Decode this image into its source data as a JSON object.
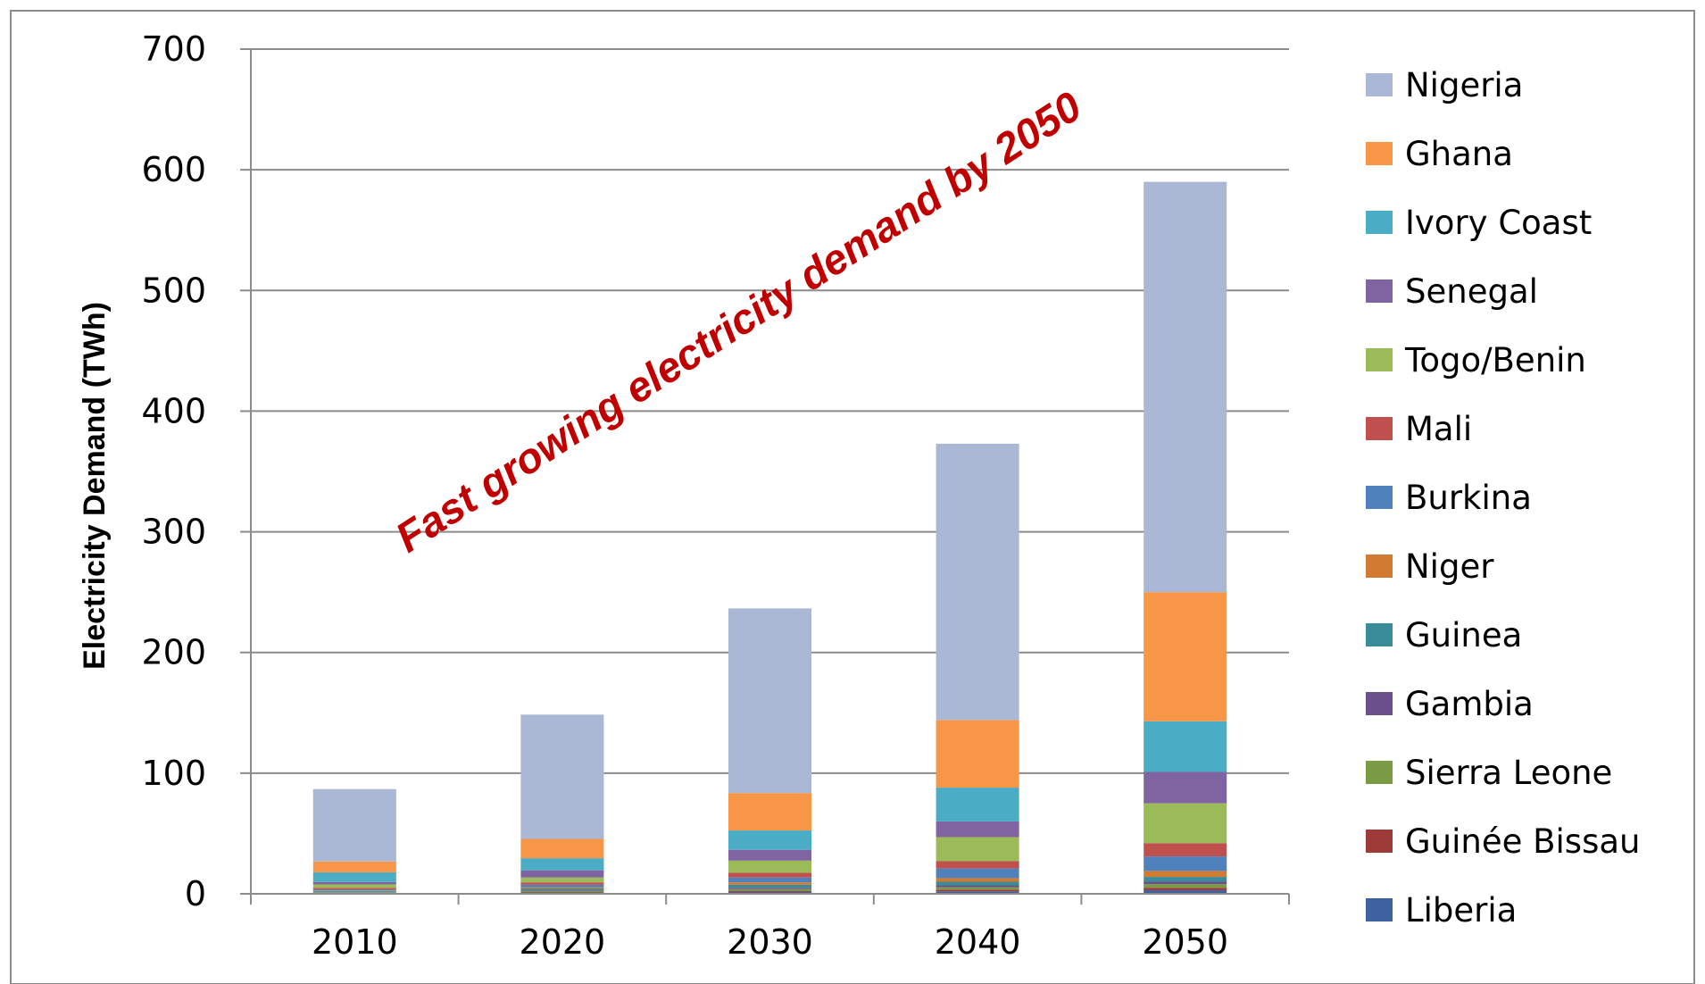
{
  "chart_data": {
    "type": "bar",
    "stacked": true,
    "categories": [
      "2010",
      "2020",
      "2030",
      "2040",
      "2050"
    ],
    "ylabel": "Electricity Demand (TWh)",
    "ylim": [
      0,
      700
    ],
    "yticks": [
      "0",
      "100",
      "200",
      "300",
      "400",
      "500",
      "600",
      "700"
    ],
    "grid": true,
    "legend_position": "right",
    "annotation": {
      "text": "Fast growing electricity demand by 2050",
      "color": "#c00000"
    },
    "series": [
      {
        "name": "Liberia",
        "color": "#3e62a0",
        "values": [
          0.5,
          1,
          1.5,
          2,
          3
        ]
      },
      {
        "name": "Guinée Bissau",
        "color": "#9c3b38",
        "values": [
          0.3,
          0.5,
          1,
          1.5,
          2
        ]
      },
      {
        "name": "Sierra Leone",
        "color": "#7a9a44",
        "values": [
          0.5,
          1,
          1.5,
          2,
          3
        ]
      },
      {
        "name": "Gambia",
        "color": "#6a4f8c",
        "values": [
          0.3,
          0.5,
          1,
          1.5,
          2
        ]
      },
      {
        "name": "Guinea",
        "color": "#3a8c9b",
        "values": [
          0.7,
          1.5,
          2.5,
          3,
          4
        ]
      },
      {
        "name": "Niger",
        "color": "#d07a32",
        "values": [
          0.5,
          1,
          2,
          3,
          5
        ]
      },
      {
        "name": "Burkina",
        "color": "#4f81bd",
        "values": [
          1,
          2,
          4,
          8,
          12
        ]
      },
      {
        "name": "Mali",
        "color": "#c0504d",
        "values": [
          1,
          2,
          4,
          6,
          11
        ]
      },
      {
        "name": "Togo/Benin",
        "color": "#9bbb59",
        "values": [
          3,
          4,
          10,
          20,
          33
        ]
      },
      {
        "name": "Senegal",
        "color": "#8064a2",
        "values": [
          2,
          6,
          9,
          13,
          26
        ]
      },
      {
        "name": "Ivory Coast",
        "color": "#4bacc6",
        "values": [
          8,
          10,
          16,
          28,
          42
        ]
      },
      {
        "name": "Ghana",
        "color": "#f79646",
        "values": [
          9,
          16,
          31,
          56,
          107
        ]
      },
      {
        "name": "Nigeria",
        "color": "#aab8d6",
        "values": [
          60,
          103,
          153,
          229,
          340
        ]
      }
    ],
    "legend_order": [
      "Nigeria",
      "Ghana",
      "Ivory Coast",
      "Senegal",
      "Togo/Benin",
      "Mali",
      "Burkina",
      "Niger",
      "Guinea",
      "Gambia",
      "Sierra Leone",
      "Guinée Bissau",
      "Liberia"
    ]
  }
}
